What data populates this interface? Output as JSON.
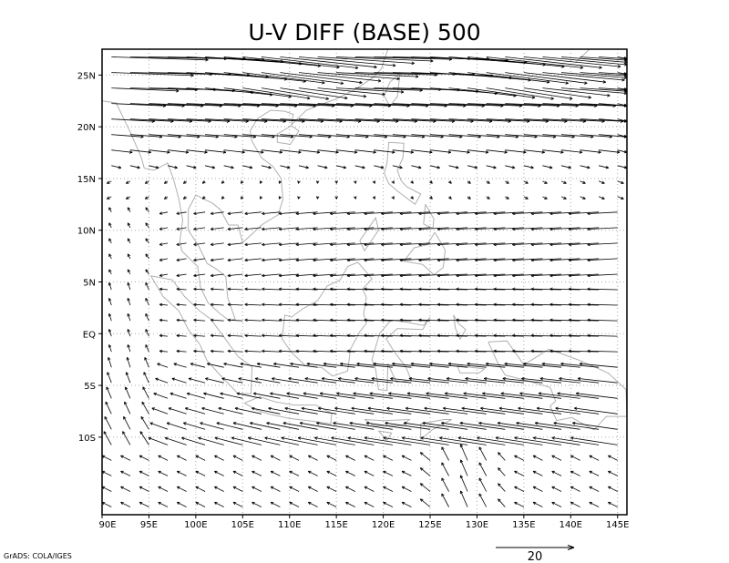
{
  "chart_data": {
    "type": "vector",
    "title": "U-V DIFF (BASE) 500",
    "xlabel": "",
    "ylabel": "",
    "xlim": [
      90,
      146
    ],
    "ylim": [
      -17.5,
      27.5
    ],
    "x_ticks": [
      90,
      95,
      100,
      105,
      110,
      115,
      120,
      125,
      130,
      135,
      140,
      145
    ],
    "x_tick_labels": [
      "90E",
      "95E",
      "100E",
      "105E",
      "110E",
      "115E",
      "120E",
      "125E",
      "130E",
      "135E",
      "140E",
      "145E"
    ],
    "y_ticks": [
      25,
      20,
      15,
      10,
      5,
      0,
      -5,
      -10
    ],
    "y_tick_labels": [
      "25N",
      "20N",
      "15N",
      "10N",
      "5N",
      "EQ",
      "5S",
      "10S"
    ],
    "grid": true,
    "grid_style": "dotted",
    "background_map": "coastlines",
    "vector_grid": {
      "lon_start": 90,
      "lon_step": 2,
      "lat_start": -17.5,
      "lat_step": 1.5
    },
    "reference_vector": {
      "label": "20",
      "magnitude": 20
    },
    "credit": "GrADS: COLA/IGES"
  },
  "colors": {
    "axis": "#000000",
    "vectors": "#000000",
    "grid": "#aaaaaa",
    "coastline": "#b0b0b0"
  }
}
